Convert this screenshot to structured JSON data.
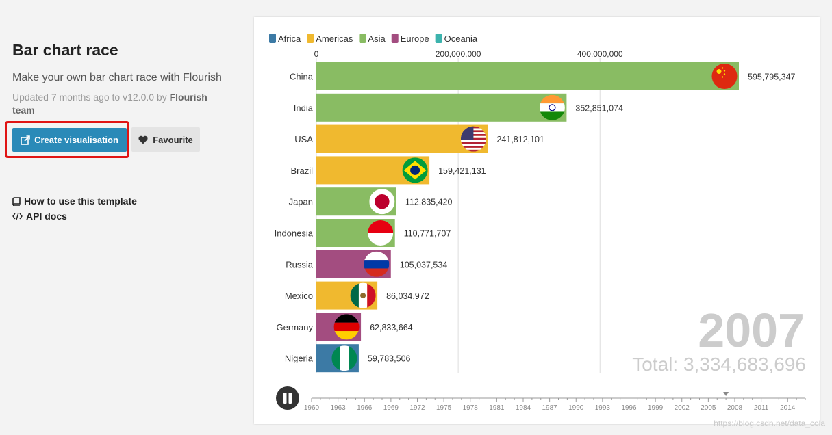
{
  "sidebar": {
    "title": "Bar chart race",
    "subtitle": "Make your own bar chart race with Flourish",
    "updated_prefix": "Updated 7 months ago to v12.0.0 by ",
    "updated_author": "Flourish team",
    "create_label": "Create visualisation",
    "favourite_label": "Favourite",
    "how_to_label": "How to use this template",
    "api_docs_label": "API docs"
  },
  "colors": {
    "accent": "#2a8ab8",
    "highlight": "#e01414",
    "Africa": "#3c7aa5",
    "Americas": "#f0b92f",
    "Asia": "#89bc63",
    "Europe": "#a34d80",
    "Oceania": "#3cb3ad"
  },
  "chart_data": {
    "type": "bar",
    "legend": [
      "Africa",
      "Americas",
      "Asia",
      "Europe",
      "Oceania"
    ],
    "legend_placement": "top-left",
    "axis_ticks": [
      "0",
      "200,000,000",
      "400,000,000"
    ],
    "xlim": [
      0,
      595795347
    ],
    "categories": [
      "China",
      "India",
      "USA",
      "Brazil",
      "Japan",
      "Indonesia",
      "Russia",
      "Mexico",
      "Germany",
      "Nigeria"
    ],
    "values": [
      595795347,
      352851074,
      241812101,
      159421131,
      112835420,
      110771707,
      105037534,
      86034972,
      62833664,
      59783506
    ],
    "labels": [
      "595,795,347",
      "352,851,074",
      "241,812,101",
      "159,421,131",
      "112,835,420",
      "110,771,707",
      "105,037,534",
      "86,034,972",
      "62,833,664",
      "59,783,506"
    ],
    "regions": [
      "Asia",
      "Asia",
      "Americas",
      "Americas",
      "Asia",
      "Asia",
      "Europe",
      "Americas",
      "Europe",
      "Africa"
    ],
    "flags": [
      "china-flag",
      "india-flag",
      "usa-flag",
      "brazil-flag",
      "japan-flag",
      "indonesia-flag",
      "russia-flag",
      "mexico-flag",
      "germany-flag",
      "nigeria-flag"
    ],
    "year": "2007",
    "total_label": "Total: 3,334,683,696",
    "timeline": {
      "ticks": [
        "1960",
        "1963",
        "1966",
        "1969",
        "1972",
        "1975",
        "1978",
        "1981",
        "1984",
        "1987",
        "1990",
        "1993",
        "1996",
        "1999",
        "2002",
        "2005",
        "2008",
        "2011",
        "2014"
      ],
      "start_year": 1960,
      "end_year": 2016,
      "current_year": 2007
    },
    "grid": true
  },
  "watermark": "https://blog.csdn.net/data_cola"
}
